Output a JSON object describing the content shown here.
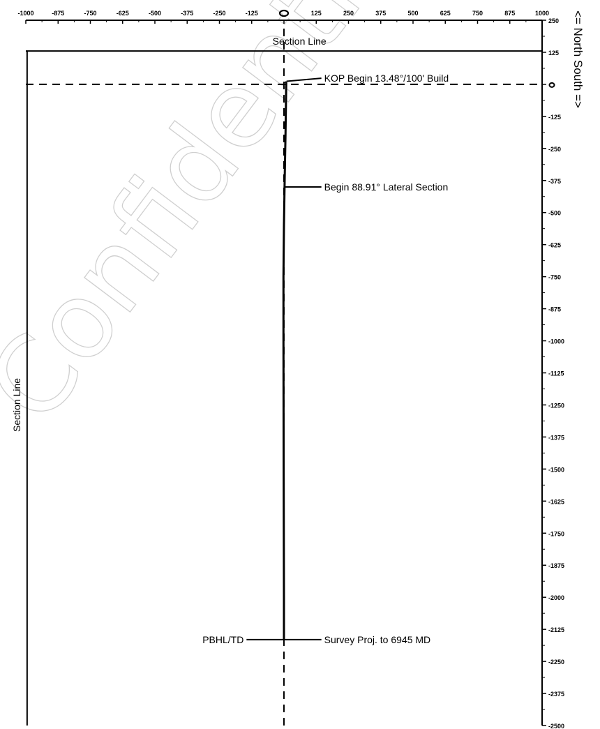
{
  "chart_data": {
    "type": "line",
    "title": "",
    "xlabel": "",
    "ylabel": "",
    "xlim": [
      -1000,
      1000
    ],
    "ylim": [
      -2500,
      250
    ],
    "x_ticks": [
      -1000,
      -875,
      -750,
      -625,
      -500,
      -375,
      -250,
      -125,
      0,
      125,
      250,
      375,
      500,
      625,
      750,
      875,
      1000
    ],
    "y_ticks": [
      250,
      125,
      0,
      -125,
      -250,
      -375,
      -500,
      -625,
      -750,
      -875,
      -1000,
      -1125,
      -1250,
      -1375,
      -1500,
      -1625,
      -1750,
      -1875,
      -2000,
      -2125,
      -2250,
      -2375,
      -2500
    ],
    "section_lines": {
      "north_y": 130,
      "west_x": -995,
      "label": "Section Line"
    },
    "direction_label": "<= North    South =>",
    "watermark": "Confidential",
    "series": [
      {
        "values_xy": [
          [
            5,
            10
          ],
          [
            9,
            6
          ],
          [
            8,
            -50
          ],
          [
            6,
            -200
          ],
          [
            3,
            -360
          ],
          [
            0,
            -550
          ],
          [
            -2,
            -750
          ],
          [
            -2,
            -1000
          ],
          [
            -1,
            -1500
          ],
          [
            0,
            -2000
          ],
          [
            0,
            -2165
          ]
        ]
      }
    ],
    "annotations": [
      {
        "text": "KOP Begin  13.48°/100' Build",
        "x": 10,
        "y": 12,
        "label_x": 145,
        "label_y": 24,
        "anchor": "start"
      },
      {
        "text": "Begin  88.91° Lateral Section",
        "x": 3,
        "y": -400,
        "label_x": 145,
        "label_y": -400,
        "anchor": "start"
      },
      {
        "text": "Survey Proj. to  6945 MD",
        "x": 0,
        "y": -2165,
        "label_x": 145,
        "label_y": -2165,
        "anchor": "start"
      },
      {
        "text": "PBHL/TD",
        "x": -2,
        "y": -2165,
        "label_x": -145,
        "label_y": -2165,
        "anchor": "end"
      }
    ]
  }
}
